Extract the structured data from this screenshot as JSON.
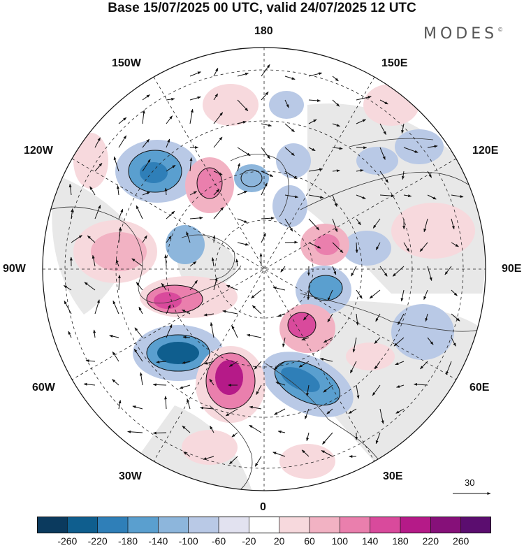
{
  "title": "Base 15/07/2025 00 UTC, valid 24/07/2025 12 UTC",
  "brand": {
    "name": "MODES",
    "mark": "©"
  },
  "longitude_labels": {
    "top": "180",
    "bottom": "0",
    "left": "90W",
    "right": "90E",
    "upper_left_1": "150W",
    "upper_left_2": "120W",
    "upper_right_1": "150E",
    "upper_right_2": "120E",
    "lower_left_1": "60W",
    "lower_left_2": "30W",
    "lower_right_1": "60E",
    "lower_right_2": "30E"
  },
  "reference_vector": {
    "label": "30",
    "icon": "arrow-right-icon"
  },
  "colorbar": {
    "ticks": [
      "-260",
      "-220",
      "-180",
      "-140",
      "-100",
      "-60",
      "-20",
      "20",
      "60",
      "100",
      "140",
      "180",
      "220",
      "260"
    ],
    "colors": [
      "#0b3a5e",
      "#0f5e8e",
      "#2f7fb8",
      "#5a9fcf",
      "#8db6dc",
      "#b9c9e6",
      "#e2e2f0",
      "#ffffff",
      "#f7d9dd",
      "#f2b2c3",
      "#ea7fad",
      "#d94a9c",
      "#b51a88",
      "#861079",
      "#5b0d6f"
    ]
  },
  "map": {
    "projection": "north-polar-stereographic",
    "grid": true,
    "coastlines": true,
    "background": "#e9e9e9"
  }
}
